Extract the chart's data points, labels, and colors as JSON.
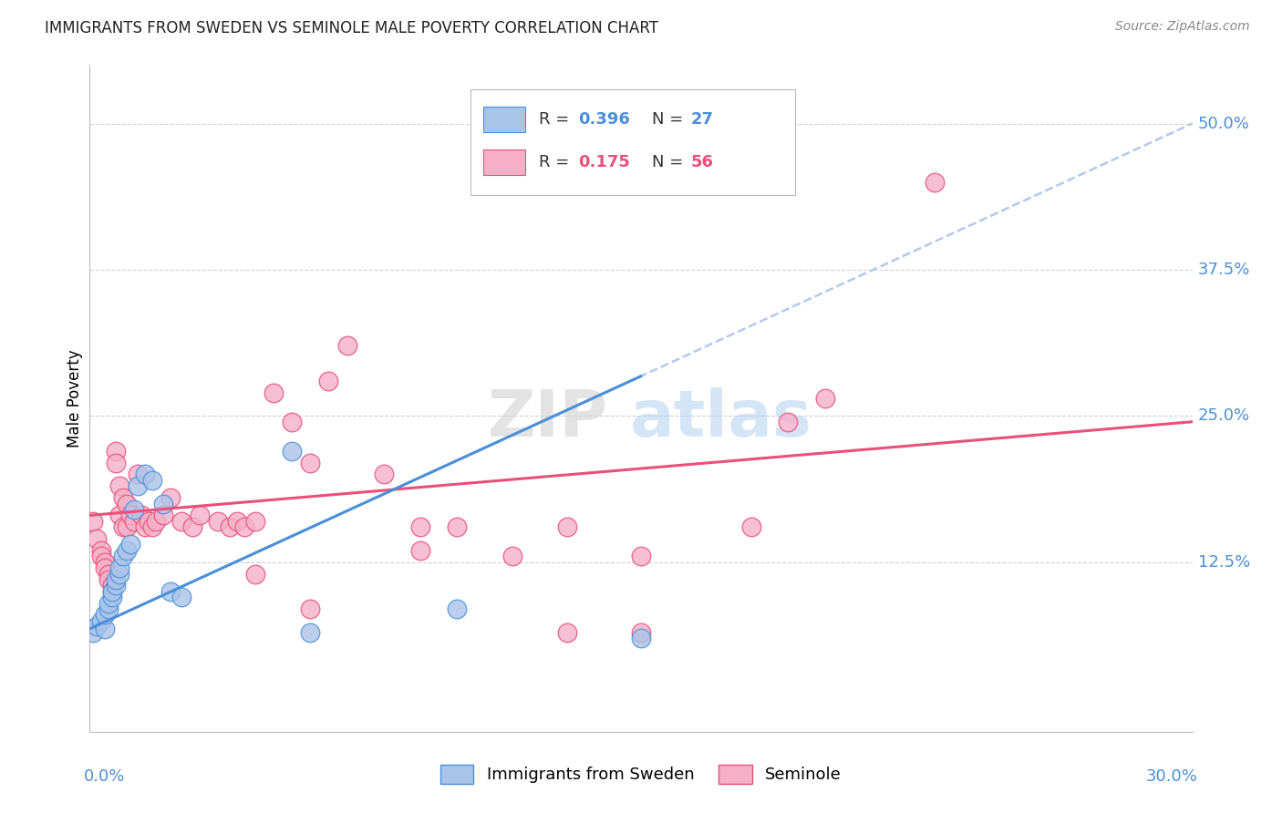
{
  "title": "IMMIGRANTS FROM SWEDEN VS SEMINOLE MALE POVERTY CORRELATION CHART",
  "source": "Source: ZipAtlas.com",
  "ylabel": "Male Poverty",
  "xlim": [
    0.0,
    0.3
  ],
  "ylim": [
    -0.02,
    0.55
  ],
  "blue_color": "#aac4e8",
  "blue_line_color": "#4a90d9",
  "pink_color": "#f5b0c8",
  "pink_line_color": "#e8507a",
  "dashed_line_color": "#aac4e8",
  "watermark_zip": "ZIP",
  "watermark_atlas": "atlas",
  "legend_blue_label": "Immigrants from Sweden",
  "legend_pink_label": "Seminole",
  "blue_R": "0.396",
  "blue_N": "27",
  "pink_R": "0.175",
  "pink_N": "56",
  "blue_line_x0": 0.0,
  "blue_line_y0": 0.068,
  "blue_line_x1": 0.3,
  "blue_line_y1": 0.5,
  "pink_line_x0": 0.0,
  "pink_line_y0": 0.165,
  "pink_line_x1": 0.3,
  "pink_line_y1": 0.245,
  "blue_points_x": [
    0.001,
    0.002,
    0.003,
    0.004,
    0.004,
    0.005,
    0.005,
    0.006,
    0.006,
    0.007,
    0.007,
    0.008,
    0.008,
    0.009,
    0.01,
    0.011,
    0.012,
    0.013,
    0.015,
    0.017,
    0.02,
    0.022,
    0.025,
    0.055,
    0.06,
    0.1,
    0.15
  ],
  "blue_points_y": [
    0.065,
    0.07,
    0.075,
    0.068,
    0.08,
    0.085,
    0.09,
    0.095,
    0.1,
    0.105,
    0.11,
    0.115,
    0.12,
    0.13,
    0.135,
    0.14,
    0.17,
    0.19,
    0.2,
    0.195,
    0.175,
    0.1,
    0.095,
    0.22,
    0.065,
    0.085,
    0.06
  ],
  "pink_points_x": [
    0.001,
    0.002,
    0.003,
    0.003,
    0.004,
    0.004,
    0.005,
    0.005,
    0.006,
    0.006,
    0.007,
    0.007,
    0.008,
    0.008,
    0.009,
    0.009,
    0.01,
    0.01,
    0.011,
    0.012,
    0.013,
    0.014,
    0.015,
    0.016,
    0.017,
    0.018,
    0.02,
    0.022,
    0.025,
    0.028,
    0.03,
    0.035,
    0.038,
    0.04,
    0.042,
    0.045,
    0.05,
    0.055,
    0.06,
    0.065,
    0.07,
    0.08,
    0.09,
    0.1,
    0.115,
    0.13,
    0.15,
    0.18,
    0.19,
    0.2,
    0.045,
    0.06,
    0.09,
    0.13,
    0.15,
    0.23
  ],
  "pink_points_y": [
    0.16,
    0.145,
    0.135,
    0.13,
    0.125,
    0.12,
    0.115,
    0.11,
    0.105,
    0.1,
    0.22,
    0.21,
    0.19,
    0.165,
    0.155,
    0.18,
    0.155,
    0.175,
    0.165,
    0.16,
    0.2,
    0.165,
    0.155,
    0.16,
    0.155,
    0.16,
    0.165,
    0.18,
    0.16,
    0.155,
    0.165,
    0.16,
    0.155,
    0.16,
    0.155,
    0.16,
    0.27,
    0.245,
    0.21,
    0.28,
    0.31,
    0.2,
    0.155,
    0.155,
    0.13,
    0.155,
    0.13,
    0.155,
    0.245,
    0.265,
    0.115,
    0.085,
    0.135,
    0.065,
    0.065,
    0.45
  ]
}
